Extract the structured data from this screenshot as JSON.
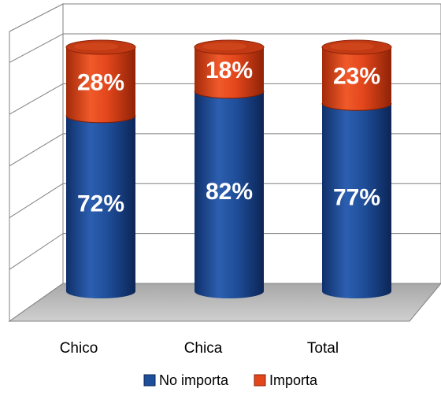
{
  "chart_data": {
    "type": "bar",
    "stacked": true,
    "style": "3d-cylinder",
    "categories": [
      "Chico",
      "Chica",
      "Total"
    ],
    "series": [
      {
        "name": "No importa",
        "values": [
          72,
          82,
          77
        ],
        "labels": [
          "72%",
          "82%",
          "77%"
        ],
        "color": "#1f4e9a"
      },
      {
        "name": "Importa",
        "values": [
          28,
          18,
          23
        ],
        "labels": [
          "28%",
          "18%",
          "23%"
        ],
        "color": "#e2461b"
      }
    ],
    "bar_totals": [
      100,
      100,
      100
    ],
    "ylim": [
      0,
      100
    ],
    "grid": true,
    "legend_position": "bottom",
    "title": "",
    "xlabel": "",
    "ylabel": ""
  }
}
